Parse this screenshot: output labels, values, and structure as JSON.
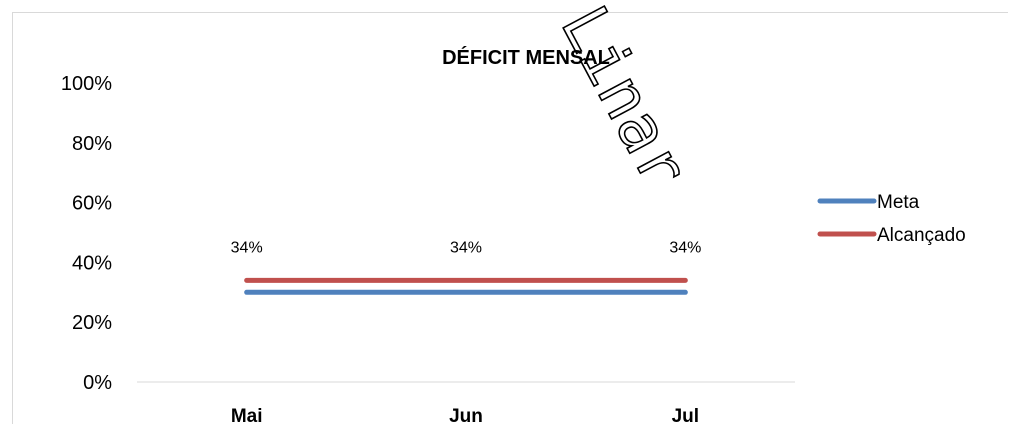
{
  "chart_data": {
    "type": "line",
    "title": "DÉFICIT MENSAL",
    "categories": [
      "Mai",
      "Jun",
      "Jul"
    ],
    "series": [
      {
        "name": "Meta",
        "values": [
          0.3,
          0.3,
          0.3
        ],
        "color": "#4f81bd",
        "labels": []
      },
      {
        "name": "Alcançado",
        "values": [
          0.34,
          0.34,
          0.34
        ],
        "color": "#c0504d",
        "labels": [
          "34%",
          "34%",
          "34%"
        ]
      }
    ],
    "ylim": [
      0,
      1
    ],
    "yticks": [
      "0%",
      "20%",
      "40%",
      "60%",
      "80%",
      "100%"
    ],
    "ytick_values": [
      0,
      0.2,
      0.4,
      0.6,
      0.8,
      1.0
    ],
    "xlabel": "",
    "ylabel": "",
    "legend_position": "right",
    "grid": false
  },
  "watermark": {
    "text": "Linar",
    "color": "#000000"
  }
}
